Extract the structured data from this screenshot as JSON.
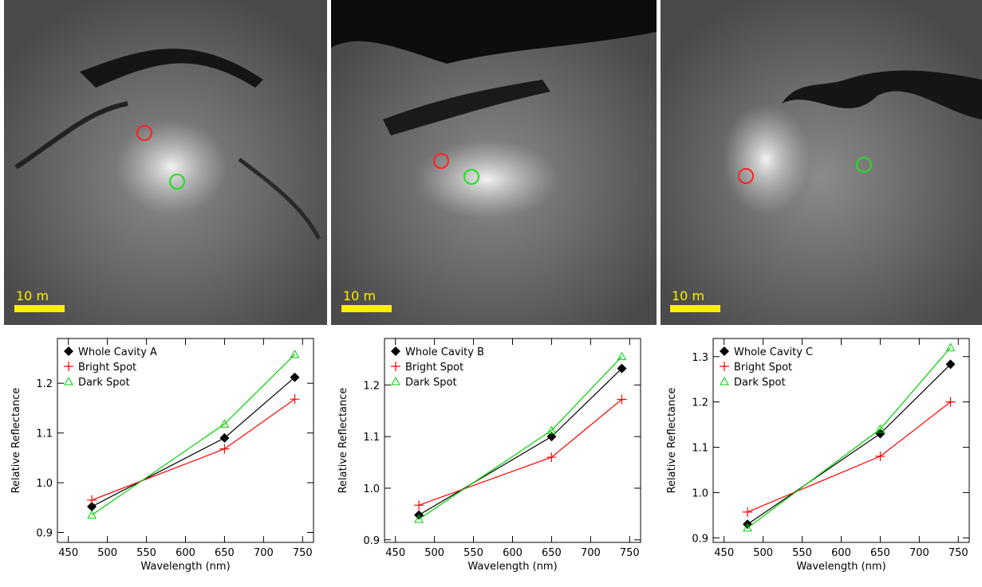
{
  "images": [
    {
      "scale_label": "10 m"
    },
    {
      "scale_label": "10 m"
    },
    {
      "scale_label": "10 m"
    }
  ],
  "chart_data": [
    {
      "type": "line",
      "x_label": "Wavelength (nm)",
      "y_label": "Relative Reflectance",
      "x": [
        480,
        650,
        740
      ],
      "xlim": [
        436,
        764
      ],
      "xticks": [
        450,
        500,
        550,
        600,
        650,
        700,
        750
      ],
      "ylim": [
        0.88,
        1.29
      ],
      "yticks": [
        0.9,
        {
          "value": 1,
          "label": "1.0"
        },
        1.1,
        1.2
      ],
      "series": [
        {
          "name": "Whole Cavity A",
          "color": "#000000",
          "marker": "diamond",
          "values": [
            0.952,
            1.09,
            1.212
          ]
        },
        {
          "name": "Bright Spot",
          "color": "#ff0000",
          "marker": "plus",
          "values": [
            0.965,
            1.068,
            1.168
          ]
        },
        {
          "name": "Dark Spot",
          "color": "#00d000",
          "marker": "triangle",
          "values": [
            0.935,
            1.118,
            1.258
          ]
        }
      ]
    },
    {
      "type": "line",
      "x_label": "Wavelength (nm)",
      "y_label": "Relative Reflectance",
      "x": [
        480,
        650,
        740
      ],
      "xlim": [
        436,
        764
      ],
      "xticks": [
        450,
        500,
        550,
        600,
        650,
        700,
        750
      ],
      "ylim": [
        0.895,
        1.29
      ],
      "yticks": [
        0.9,
        {
          "value": 1,
          "label": "1.0"
        },
        1.1,
        1.2
      ],
      "series": [
        {
          "name": "Whole Cavity B",
          "color": "#000000",
          "marker": "diamond",
          "values": [
            0.948,
            1.1,
            1.232
          ]
        },
        {
          "name": "Bright Spot",
          "color": "#ff0000",
          "marker": "plus",
          "values": [
            0.967,
            1.06,
            1.172
          ]
        },
        {
          "name": "Dark Spot",
          "color": "#00d000",
          "marker": "triangle",
          "values": [
            0.94,
            1.112,
            1.255
          ]
        }
      ]
    },
    {
      "type": "line",
      "x_label": "Wavelength (nm)",
      "y_label": "Relative Reflectance",
      "x": [
        480,
        650,
        740
      ],
      "xlim": [
        436,
        764
      ],
      "xticks": [
        450,
        500,
        550,
        600,
        650,
        700,
        750
      ],
      "ylim": [
        0.89,
        1.34
      ],
      "yticks": [
        0.9,
        {
          "value": 1,
          "label": "1.0"
        },
        1.1,
        1.2,
        1.3
      ],
      "series": [
        {
          "name": "Whole Cavity C",
          "color": "#000000",
          "marker": "diamond",
          "values": [
            0.93,
            1.13,
            1.283
          ]
        },
        {
          "name": "Bright Spot",
          "color": "#ff0000",
          "marker": "plus",
          "values": [
            0.957,
            1.08,
            1.2
          ]
        },
        {
          "name": "Dark Spot",
          "color": "#00d000",
          "marker": "triangle",
          "values": [
            0.922,
            1.14,
            1.32
          ]
        }
      ]
    }
  ]
}
